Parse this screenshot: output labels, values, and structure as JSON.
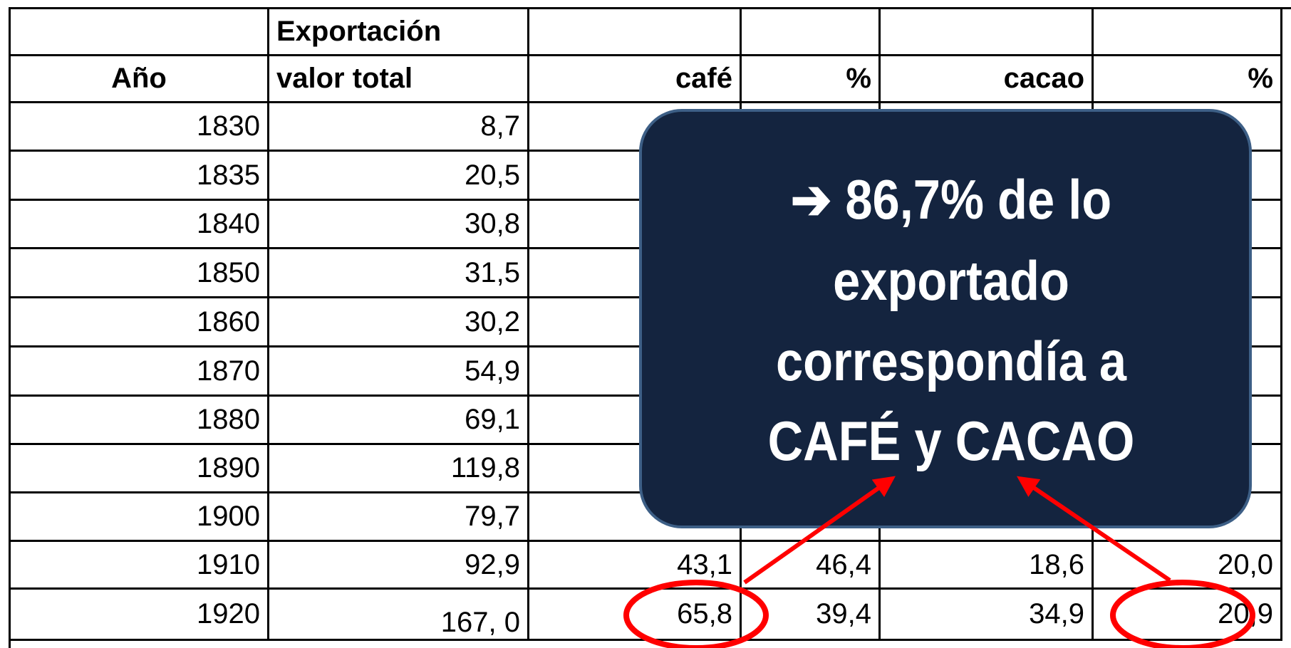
{
  "table": {
    "group_header": "Exportación",
    "columns": [
      "Año",
      "valor total",
      "café",
      "%",
      "cacao",
      "%"
    ],
    "rows": [
      [
        "1830",
        "8,7"
      ],
      [
        "1835",
        "20,5"
      ],
      [
        "1840",
        "30,8"
      ],
      [
        "1850",
        "31,5"
      ],
      [
        "1860",
        "30,2"
      ],
      [
        "1870",
        "54,9"
      ],
      [
        "1880",
        "69,1"
      ],
      [
        "1890",
        "119,8"
      ],
      [
        "1900",
        "79,7"
      ],
      [
        "1910",
        "92,9",
        "43,1",
        "46,4",
        "18,6",
        "20,0"
      ],
      [
        "1920",
        "167, 0",
        "65,8",
        "39,4",
        "34,9",
        "20,9"
      ]
    ]
  },
  "callout": {
    "lines": [
      "➔ 86,7% de lo",
      "exportado",
      "correspondía a",
      "CAFÉ y CACAO"
    ]
  }
}
